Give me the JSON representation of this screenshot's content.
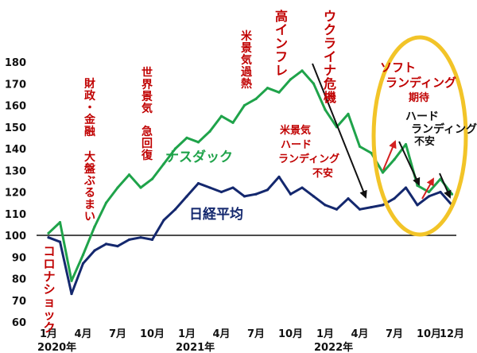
{
  "chart_data": {
    "type": "line",
    "title": "",
    "xlabel": "",
    "ylabel": "",
    "ylim": [
      60,
      180
    ],
    "grid": false,
    "y_ticks": [
      "180",
      "170",
      "160",
      "150",
      "140",
      "130",
      "120",
      "110",
      "100",
      "90",
      "80",
      "70",
      "60"
    ],
    "x_tick_labels": [
      "1月",
      "4月",
      "7月",
      "10月",
      "1月",
      "4月",
      "7月",
      "10月",
      "1月",
      "4月",
      "7月",
      "10月",
      "12月"
    ],
    "year_labels": [
      "2020年",
      "2021年",
      "2022年"
    ],
    "baseline": 100,
    "x": [
      "2020-01",
      "2020-02",
      "2020-03",
      "2020-04",
      "2020-05",
      "2020-06",
      "2020-07",
      "2020-08",
      "2020-09",
      "2020-10",
      "2020-11",
      "2020-12",
      "2021-01",
      "2021-02",
      "2021-03",
      "2021-04",
      "2021-05",
      "2021-06",
      "2021-07",
      "2021-08",
      "2021-09",
      "2021-10",
      "2021-11",
      "2021-12",
      "2022-01",
      "2022-02",
      "2022-03",
      "2022-04",
      "2022-05",
      "2022-06",
      "2022-07",
      "2022-08",
      "2022-09",
      "2022-10",
      "2022-11",
      "2022-12"
    ],
    "series": [
      {
        "name": "ナスダック",
        "color": "#1fa34a",
        "values": [
          101,
          106,
          79,
          91,
          104,
          115,
          122,
          128,
          122,
          126,
          133,
          140,
          145,
          143,
          148,
          155,
          152,
          160,
          163,
          168,
          166,
          172,
          176,
          170,
          158,
          150,
          156,
          141,
          138,
          129,
          135,
          142,
          123,
          120,
          126,
          119
        ]
      },
      {
        "name": "日経平均",
        "color": "#14286e",
        "values": [
          99,
          97,
          73,
          87,
          93,
          96,
          95,
          98,
          99,
          98,
          107,
          112,
          118,
          124,
          122,
          120,
          122,
          118,
          119,
          121,
          127,
          119,
          122,
          118,
          114,
          112,
          117,
          112,
          113,
          114,
          117,
          122,
          114,
          118,
          120,
          114
        ]
      }
    ],
    "annotations": [
      {
        "text": "財政・金融",
        "color": "#c00000"
      },
      {
        "text": "大盤ぶるまい",
        "color": "#c00000"
      },
      {
        "text": "世界景気",
        "color": "#c00000"
      },
      {
        "text": "急回復",
        "color": "#c00000"
      },
      {
        "text": "米景気過熱",
        "color": "#c00000"
      },
      {
        "text": "高インフレ",
        "color": "#c00000"
      },
      {
        "text": "ウクライナ危機",
        "color": "#c00000"
      },
      {
        "text": "コロナショック",
        "color": "#c00000"
      },
      {
        "text": "米景気",
        "color": "#c00000"
      },
      {
        "text": "ハード",
        "color": "#c00000"
      },
      {
        "text": "ランディング",
        "color": "#c00000"
      },
      {
        "text": "不安",
        "color": "#c00000"
      },
      {
        "text": "ソフト",
        "color": "#c00000"
      },
      {
        "text": "ランディング",
        "color": "#c00000"
      },
      {
        "text": "期待",
        "color": "#c00000"
      },
      {
        "text": "ハード",
        "color": "#111111"
      },
      {
        "text": "ランディング",
        "color": "#111111"
      },
      {
        "text": "不安",
        "color": "#111111"
      }
    ],
    "highlight_color": "#f2c428"
  }
}
